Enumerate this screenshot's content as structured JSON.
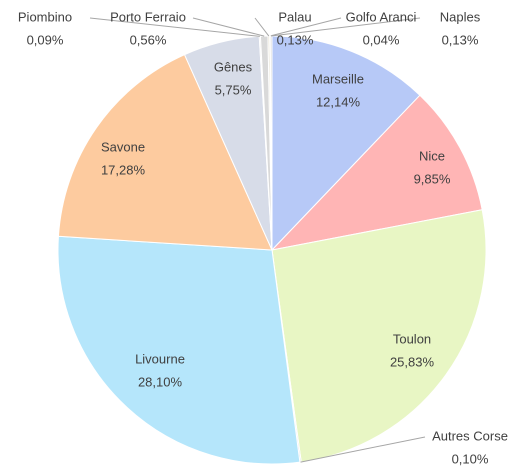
{
  "chart_data": {
    "type": "pie",
    "categories": [
      "Marseille",
      "Nice",
      "Toulon",
      "Autres Corse",
      "Livourne",
      "Savone",
      "Gênes",
      "Piombino",
      "Porto Ferraio",
      "Palau",
      "Golfo Aranci",
      "Naples"
    ],
    "values": [
      12.14,
      9.85,
      25.83,
      0.1,
      28.1,
      17.28,
      5.75,
      0.09,
      0.56,
      0.13,
      0.04,
      0.13
    ],
    "value_labels": [
      "12,14%",
      "9,85%",
      "25,83%",
      "0,10%",
      "28,10%",
      "17,28%",
      "5,75%",
      "0,09%",
      "0,56%",
      "0,13%",
      "0,04%",
      "0,13%"
    ],
    "colors": [
      "#b7c9f7",
      "#ffb5b5",
      "#e8f6c4",
      "#d9d9d9",
      "#b5e6fb",
      "#fdcb9f",
      "#d7dce8",
      "#d9d9d9",
      "#d9d9d9",
      "#e6e0cf",
      "#d9d9d9",
      "#d9d9d9"
    ]
  }
}
